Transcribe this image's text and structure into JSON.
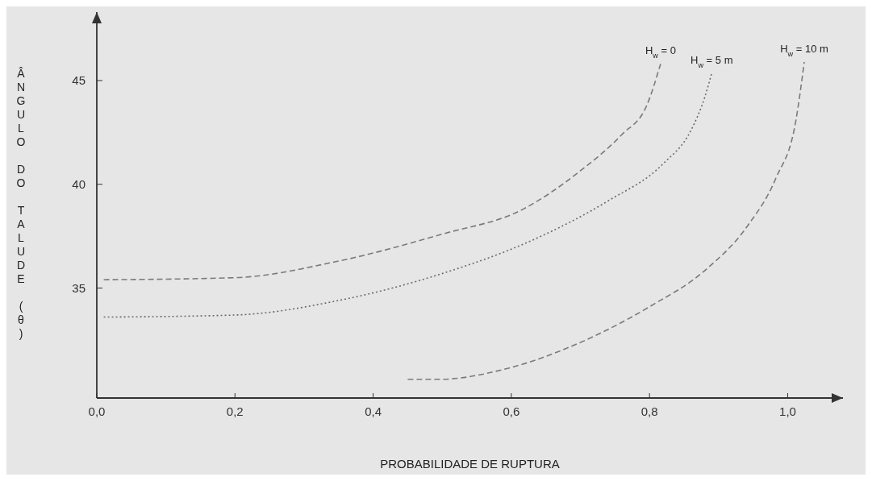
{
  "chart_data": {
    "type": "line",
    "xlabel": "PROBABILIDADE DE RUPTURA",
    "ylabel": "ÂNGULO DO TALUDE (θ)",
    "xlim": [
      0,
      1.08
    ],
    "ylim": [
      29.7,
      48.3
    ],
    "xticks": [
      {
        "value": 0,
        "label": "0,0"
      },
      {
        "value": 0.2,
        "label": "0,2"
      },
      {
        "value": 0.4,
        "label": "0,4"
      },
      {
        "value": 0.6,
        "label": "0,6"
      },
      {
        "value": 0.8,
        "label": "0,8"
      },
      {
        "value": 1.0,
        "label": "1,0"
      }
    ],
    "yticks": [
      35,
      40,
      45
    ],
    "grid": false,
    "marker": "none",
    "series": [
      {
        "name": "H$_{w}$ = 0",
        "color": "#7a7a7a",
        "line_style": "dashed",
        "x": [
          0.01,
          0.2,
          0.35,
          0.5,
          0.617,
          0.698,
          0.76,
          0.796,
          0.816
        ],
        "values": [
          35.4,
          35.5,
          36.3,
          37.6,
          38.8,
          40.6,
          42.4,
          43.8,
          45.8
        ]
      },
      {
        "name": "H$_{w}$ = 5 m",
        "color": "#6a6a6a",
        "line_style": "dotted",
        "x": [
          0.01,
          0.2,
          0.35,
          0.5,
          0.63,
          0.74,
          0.82,
          0.86,
          0.88,
          0.89
        ],
        "values": [
          33.6,
          33.7,
          34.4,
          35.7,
          37.3,
          39.2,
          41.0,
          42.6,
          44.2,
          45.35
        ]
      },
      {
        "name": "H$_{w}$ = 10 m",
        "color": "#7a7a7a",
        "line_style": "dashed",
        "x": [
          0.45,
          0.495,
          0.597,
          0.698,
          0.8,
          0.882,
          0.942,
          0.983,
          1.012,
          1.024
        ],
        "values": [
          30.6,
          30.6,
          31.15,
          32.35,
          34.1,
          35.9,
          38.0,
          40.3,
          43.1,
          45.9
        ]
      }
    ]
  }
}
